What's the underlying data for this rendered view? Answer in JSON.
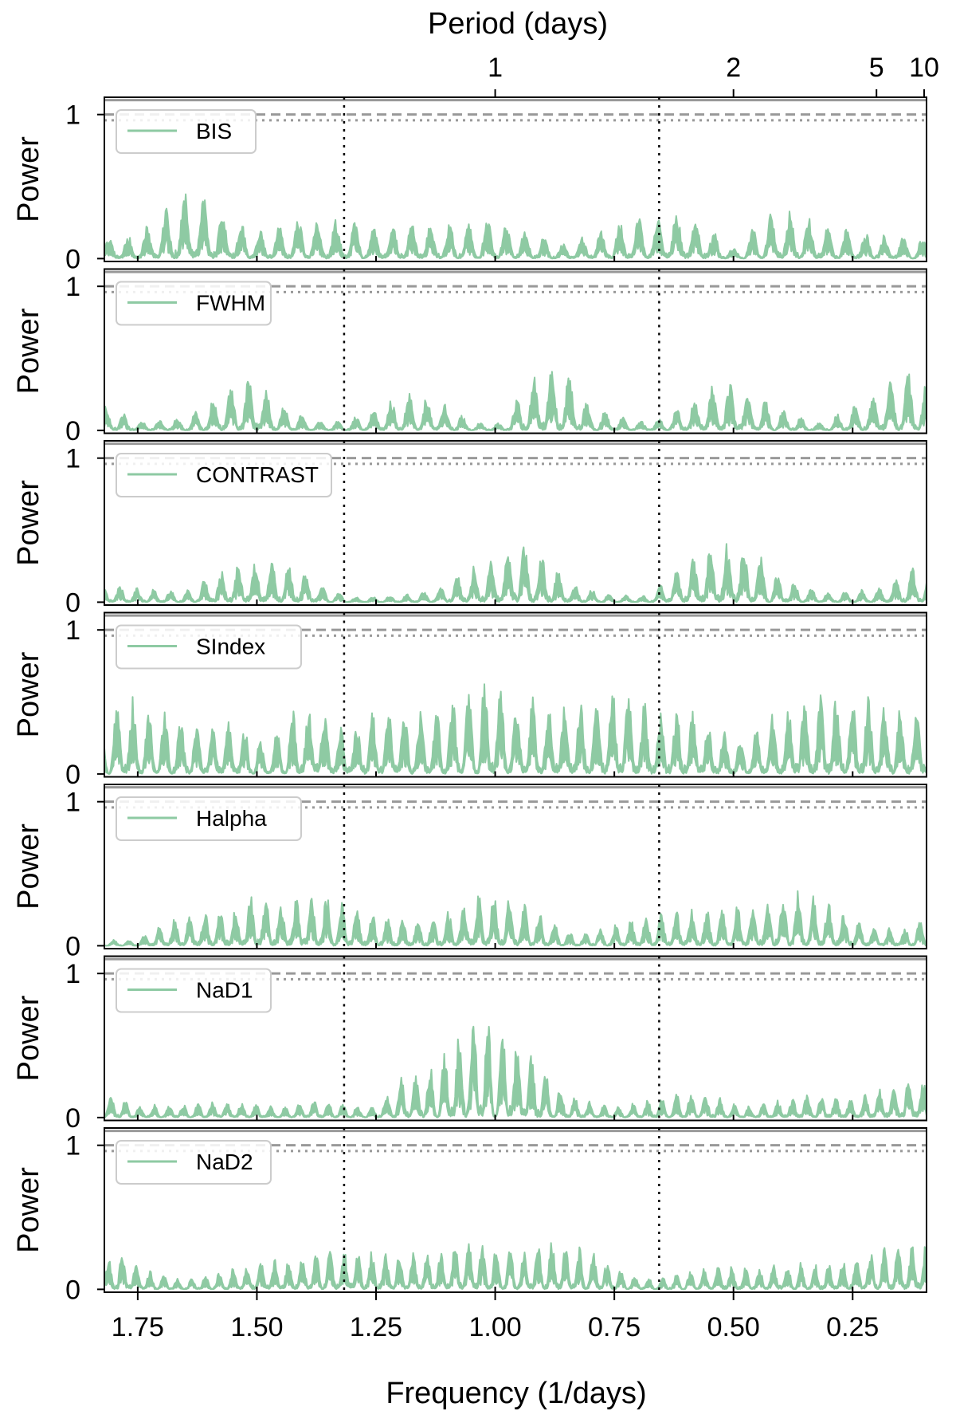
{
  "chart_data": {
    "type": "line",
    "top_axis": {
      "label": "Period (days)",
      "tick_labels": [
        "1",
        "2",
        "5",
        "10"
      ],
      "tick_periods": [
        1,
        2,
        5,
        10
      ]
    },
    "x_axis": {
      "label": "Frequency (1/days)",
      "range": [
        1.82,
        0.095
      ],
      "tick_labels": [
        "1.75",
        "1.50",
        "1.25",
        "1.00",
        "0.75",
        "0.50",
        "0.25"
      ],
      "tick_values": [
        1.75,
        1.5,
        1.25,
        1.0,
        0.75,
        0.5,
        0.25
      ]
    },
    "y_axis": {
      "label": "Power",
      "range": [
        -0.02,
        1.12
      ],
      "tick_labels": [
        "0",
        "1"
      ],
      "tick_values": [
        0,
        1
      ]
    },
    "vertical_markers": [
      1.317,
      0.656
    ],
    "fap_levels": {
      "solid": 1.1,
      "dashed": 1.0,
      "dotted": 0.96
    },
    "series_color": "#8ecaa3",
    "fap_color": "#999999",
    "panels": [
      {
        "name": "BIS",
        "peaks": [
          {
            "x": 1.82,
            "y": 0.12
          },
          {
            "x": 1.75,
            "y": 0.14
          },
          {
            "x": 1.7,
            "y": 0.25
          },
          {
            "x": 1.66,
            "y": 0.38
          },
          {
            "x": 1.63,
            "y": 0.35
          },
          {
            "x": 1.6,
            "y": 0.34
          },
          {
            "x": 1.55,
            "y": 0.22
          },
          {
            "x": 1.48,
            "y": 0.15
          },
          {
            "x": 1.4,
            "y": 0.25
          },
          {
            "x": 1.32,
            "y": 0.22
          },
          {
            "x": 1.25,
            "y": 0.18
          },
          {
            "x": 1.15,
            "y": 0.2
          },
          {
            "x": 1.05,
            "y": 0.2
          },
          {
            "x": 1.0,
            "y": 0.24
          },
          {
            "x": 0.93,
            "y": 0.16
          },
          {
            "x": 0.85,
            "y": 0.08
          },
          {
            "x": 0.75,
            "y": 0.2
          },
          {
            "x": 0.66,
            "y": 0.25
          },
          {
            "x": 0.6,
            "y": 0.28
          },
          {
            "x": 0.55,
            "y": 0.18
          },
          {
            "x": 0.5,
            "y": 0.05
          },
          {
            "x": 0.44,
            "y": 0.24
          },
          {
            "x": 0.38,
            "y": 0.28
          },
          {
            "x": 0.3,
            "y": 0.18
          },
          {
            "x": 0.2,
            "y": 0.14
          },
          {
            "x": 0.1,
            "y": 0.12
          }
        ]
      },
      {
        "name": "FWHM",
        "peaks": [
          {
            "x": 1.82,
            "y": 0.15
          },
          {
            "x": 1.75,
            "y": 0.06
          },
          {
            "x": 1.65,
            "y": 0.08
          },
          {
            "x": 1.55,
            "y": 0.25
          },
          {
            "x": 1.51,
            "y": 0.3
          },
          {
            "x": 1.45,
            "y": 0.15
          },
          {
            "x": 1.38,
            "y": 0.06
          },
          {
            "x": 1.32,
            "y": 0.05
          },
          {
            "x": 1.25,
            "y": 0.14
          },
          {
            "x": 1.18,
            "y": 0.22
          },
          {
            "x": 1.12,
            "y": 0.18
          },
          {
            "x": 1.05,
            "y": 0.05
          },
          {
            "x": 0.98,
            "y": 0.04
          },
          {
            "x": 0.95,
            "y": 0.22
          },
          {
            "x": 0.9,
            "y": 0.36
          },
          {
            "x": 0.85,
            "y": 0.37
          },
          {
            "x": 0.8,
            "y": 0.15
          },
          {
            "x": 0.72,
            "y": 0.06
          },
          {
            "x": 0.66,
            "y": 0.06
          },
          {
            "x": 0.6,
            "y": 0.15
          },
          {
            "x": 0.53,
            "y": 0.3
          },
          {
            "x": 0.48,
            "y": 0.24
          },
          {
            "x": 0.4,
            "y": 0.12
          },
          {
            "x": 0.32,
            "y": 0.04
          },
          {
            "x": 0.22,
            "y": 0.18
          },
          {
            "x": 0.15,
            "y": 0.34
          },
          {
            "x": 0.1,
            "y": 0.3
          }
        ]
      },
      {
        "name": "CONTRAST",
        "peaks": [
          {
            "x": 1.82,
            "y": 0.1
          },
          {
            "x": 1.75,
            "y": 0.08
          },
          {
            "x": 1.65,
            "y": 0.06
          },
          {
            "x": 1.58,
            "y": 0.18
          },
          {
            "x": 1.5,
            "y": 0.24
          },
          {
            "x": 1.42,
            "y": 0.21
          },
          {
            "x": 1.35,
            "y": 0.08
          },
          {
            "x": 1.3,
            "y": 0.03
          },
          {
            "x": 1.2,
            "y": 0.04
          },
          {
            "x": 1.12,
            "y": 0.08
          },
          {
            "x": 1.05,
            "y": 0.2
          },
          {
            "x": 0.98,
            "y": 0.3
          },
          {
            "x": 0.95,
            "y": 0.38
          },
          {
            "x": 0.9,
            "y": 0.28
          },
          {
            "x": 0.83,
            "y": 0.1
          },
          {
            "x": 0.75,
            "y": 0.04
          },
          {
            "x": 0.68,
            "y": 0.04
          },
          {
            "x": 0.62,
            "y": 0.18
          },
          {
            "x": 0.55,
            "y": 0.32
          },
          {
            "x": 0.5,
            "y": 0.35
          },
          {
            "x": 0.45,
            "y": 0.28
          },
          {
            "x": 0.4,
            "y": 0.14
          },
          {
            "x": 0.3,
            "y": 0.05
          },
          {
            "x": 0.2,
            "y": 0.08
          },
          {
            "x": 0.12,
            "y": 0.2
          },
          {
            "x": 0.1,
            "y": 0.2
          }
        ]
      },
      {
        "name": "SIndex",
        "peaks": [
          {
            "x": 1.82,
            "y": 0.35
          },
          {
            "x": 1.77,
            "y": 0.45
          },
          {
            "x": 1.7,
            "y": 0.35
          },
          {
            "x": 1.62,
            "y": 0.28
          },
          {
            "x": 1.55,
            "y": 0.32
          },
          {
            "x": 1.48,
            "y": 0.18
          },
          {
            "x": 1.43,
            "y": 0.35
          },
          {
            "x": 1.38,
            "y": 0.42
          },
          {
            "x": 1.32,
            "y": 0.28
          },
          {
            "x": 1.25,
            "y": 0.36
          },
          {
            "x": 1.18,
            "y": 0.38
          },
          {
            "x": 1.1,
            "y": 0.4
          },
          {
            "x": 1.05,
            "y": 0.55
          },
          {
            "x": 1.0,
            "y": 0.52
          },
          {
            "x": 0.95,
            "y": 0.45
          },
          {
            "x": 0.88,
            "y": 0.4
          },
          {
            "x": 0.8,
            "y": 0.42
          },
          {
            "x": 0.73,
            "y": 0.52
          },
          {
            "x": 0.66,
            "y": 0.35
          },
          {
            "x": 0.6,
            "y": 0.4
          },
          {
            "x": 0.53,
            "y": 0.28
          },
          {
            "x": 0.48,
            "y": 0.2
          },
          {
            "x": 0.4,
            "y": 0.38
          },
          {
            "x": 0.32,
            "y": 0.44
          },
          {
            "x": 0.25,
            "y": 0.48
          },
          {
            "x": 0.18,
            "y": 0.4
          },
          {
            "x": 0.1,
            "y": 0.38
          }
        ]
      },
      {
        "name": "Halpha",
        "peaks": [
          {
            "x": 1.82,
            "y": 0.03
          },
          {
            "x": 1.75,
            "y": 0.04
          },
          {
            "x": 1.68,
            "y": 0.15
          },
          {
            "x": 1.6,
            "y": 0.2
          },
          {
            "x": 1.55,
            "y": 0.22
          },
          {
            "x": 1.5,
            "y": 0.3
          },
          {
            "x": 1.45,
            "y": 0.25
          },
          {
            "x": 1.4,
            "y": 0.28
          },
          {
            "x": 1.35,
            "y": 0.3
          },
          {
            "x": 1.3,
            "y": 0.22
          },
          {
            "x": 1.25,
            "y": 0.18
          },
          {
            "x": 1.18,
            "y": 0.14
          },
          {
            "x": 1.12,
            "y": 0.16
          },
          {
            "x": 1.05,
            "y": 0.28
          },
          {
            "x": 1.0,
            "y": 0.3
          },
          {
            "x": 0.95,
            "y": 0.26
          },
          {
            "x": 0.9,
            "y": 0.18
          },
          {
            "x": 0.83,
            "y": 0.06
          },
          {
            "x": 0.75,
            "y": 0.12
          },
          {
            "x": 0.68,
            "y": 0.18
          },
          {
            "x": 0.6,
            "y": 0.2
          },
          {
            "x": 0.53,
            "y": 0.22
          },
          {
            "x": 0.45,
            "y": 0.24
          },
          {
            "x": 0.37,
            "y": 0.32
          },
          {
            "x": 0.3,
            "y": 0.25
          },
          {
            "x": 0.22,
            "y": 0.12
          },
          {
            "x": 0.15,
            "y": 0.1
          },
          {
            "x": 0.1,
            "y": 0.15
          }
        ]
      },
      {
        "name": "NaD1",
        "peaks": [
          {
            "x": 1.82,
            "y": 0.15
          },
          {
            "x": 1.75,
            "y": 0.07
          },
          {
            "x": 1.65,
            "y": 0.08
          },
          {
            "x": 1.55,
            "y": 0.1
          },
          {
            "x": 1.45,
            "y": 0.06
          },
          {
            "x": 1.38,
            "y": 0.1
          },
          {
            "x": 1.32,
            "y": 0.08
          },
          {
            "x": 1.25,
            "y": 0.06
          },
          {
            "x": 1.2,
            "y": 0.25
          },
          {
            "x": 1.15,
            "y": 0.28
          },
          {
            "x": 1.1,
            "y": 0.38
          },
          {
            "x": 1.06,
            "y": 0.58
          },
          {
            "x": 1.03,
            "y": 0.56
          },
          {
            "x": 1.0,
            "y": 0.52
          },
          {
            "x": 0.96,
            "y": 0.46
          },
          {
            "x": 0.92,
            "y": 0.38
          },
          {
            "x": 0.88,
            "y": 0.2
          },
          {
            "x": 0.82,
            "y": 0.1
          },
          {
            "x": 0.75,
            "y": 0.06
          },
          {
            "x": 0.68,
            "y": 0.1
          },
          {
            "x": 0.62,
            "y": 0.14
          },
          {
            "x": 0.55,
            "y": 0.14
          },
          {
            "x": 0.48,
            "y": 0.06
          },
          {
            "x": 0.4,
            "y": 0.1
          },
          {
            "x": 0.32,
            "y": 0.14
          },
          {
            "x": 0.25,
            "y": 0.1
          },
          {
            "x": 0.18,
            "y": 0.18
          },
          {
            "x": 0.12,
            "y": 0.25
          },
          {
            "x": 0.1,
            "y": 0.22
          }
        ]
      },
      {
        "name": "NaD2",
        "peaks": [
          {
            "x": 1.82,
            "y": 0.17
          },
          {
            "x": 1.78,
            "y": 0.22
          },
          {
            "x": 1.72,
            "y": 0.1
          },
          {
            "x": 1.65,
            "y": 0.05
          },
          {
            "x": 1.58,
            "y": 0.1
          },
          {
            "x": 1.5,
            "y": 0.16
          },
          {
            "x": 1.42,
            "y": 0.18
          },
          {
            "x": 1.35,
            "y": 0.22
          },
          {
            "x": 1.3,
            "y": 0.24
          },
          {
            "x": 1.25,
            "y": 0.22
          },
          {
            "x": 1.2,
            "y": 0.2
          },
          {
            "x": 1.12,
            "y": 0.22
          },
          {
            "x": 1.06,
            "y": 0.3
          },
          {
            "x": 1.0,
            "y": 0.26
          },
          {
            "x": 0.95,
            "y": 0.24
          },
          {
            "x": 0.88,
            "y": 0.27
          },
          {
            "x": 0.8,
            "y": 0.22
          },
          {
            "x": 0.73,
            "y": 0.1
          },
          {
            "x": 0.66,
            "y": 0.06
          },
          {
            "x": 0.6,
            "y": 0.1
          },
          {
            "x": 0.53,
            "y": 0.14
          },
          {
            "x": 0.45,
            "y": 0.12
          },
          {
            "x": 0.38,
            "y": 0.16
          },
          {
            "x": 0.3,
            "y": 0.14
          },
          {
            "x": 0.22,
            "y": 0.22
          },
          {
            "x": 0.16,
            "y": 0.25
          },
          {
            "x": 0.1,
            "y": 0.28
          }
        ]
      }
    ]
  }
}
